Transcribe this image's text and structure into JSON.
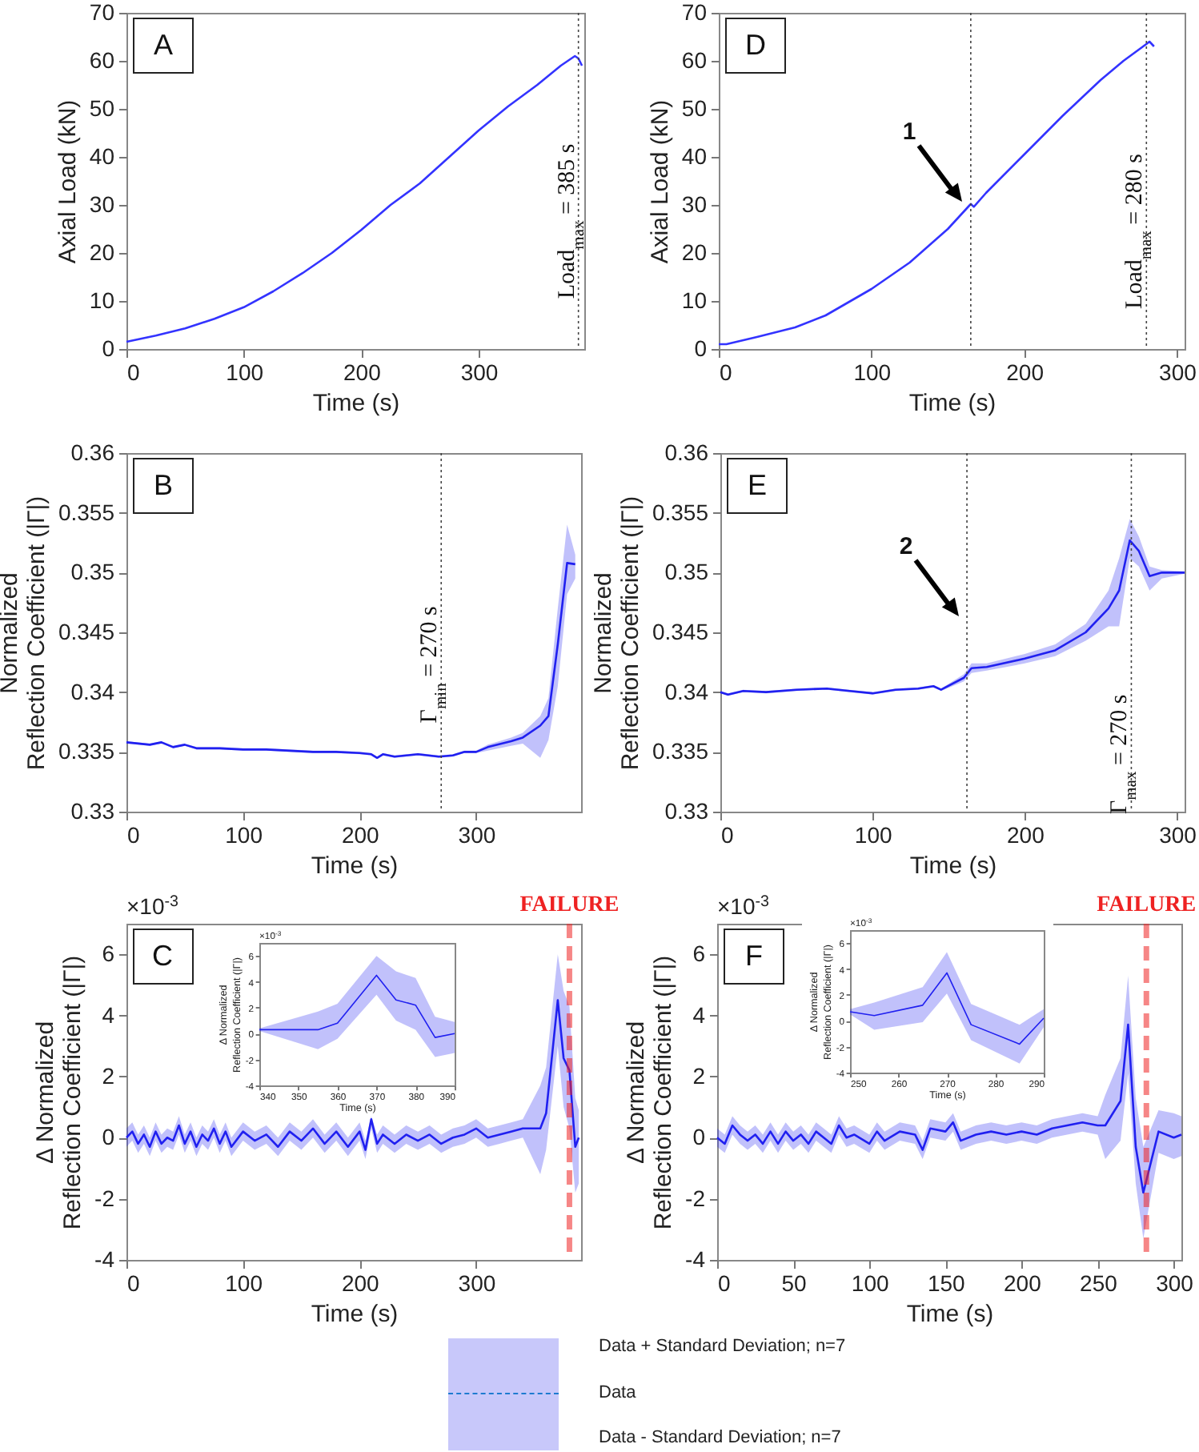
{
  "chart_data": [
    {
      "type": "line",
      "xlabel": "Time (s)",
      "ylabel": "Axial Load (kN)",
      "x": [
        0,
        25,
        50,
        75,
        100,
        125,
        150,
        175,
        200,
        225,
        250,
        275,
        300,
        325,
        350,
        370,
        382,
        385,
        388
      ],
      "series": [
        {
          "color": "#3333ff",
          "values": [
            1.5,
            2.8,
            4.3,
            6.3,
            8.7,
            12,
            15.8,
            20,
            24.8,
            30,
            34.5,
            40,
            45.5,
            50.5,
            55,
            59,
            61,
            60.5,
            59
          ]
        }
      ],
      "xlim": [
        0,
        390
      ],
      "ylim": [
        0,
        70
      ],
      "xticks": [
        0,
        100,
        200,
        300
      ],
      "yticks": [
        0,
        10,
        20,
        30,
        40,
        50,
        60,
        70
      ],
      "ref_lines": [
        {
          "axis": "x",
          "value": 385,
          "label": "Load$_{max}$ = 385 s",
          "line_style": "dotted"
        }
      ],
      "annotations": [
        "A"
      ]
    },
    {
      "type": "line",
      "xlabel": "Time (s)",
      "ylabel": "Axial Load (kN)",
      "x": [
        0,
        5,
        25,
        50,
        70,
        100,
        125,
        150,
        163,
        165,
        167,
        175,
        200,
        225,
        250,
        265,
        280,
        282,
        285
      ],
      "series": [
        {
          "color": "#3333ff",
          "values": [
            1,
            1,
            2.5,
            4.5,
            7,
            12.5,
            18,
            25,
            29.5,
            30.2,
            29.6,
            32.5,
            40.5,
            48.5,
            56,
            60,
            63.5,
            64,
            63
          ]
        }
      ],
      "xlim": [
        0,
        305
      ],
      "ylim": [
        0,
        70
      ],
      "xticks": [
        0,
        100,
        200,
        300
      ],
      "yticks": [
        0,
        10,
        20,
        30,
        40,
        50,
        60,
        70
      ],
      "ref_lines": [
        {
          "axis": "x",
          "value": 165,
          "line_style": "dotted"
        },
        {
          "axis": "x",
          "value": 280,
          "label": "Load$_{max}$ = 280 s",
          "line_style": "dotted"
        }
      ],
      "annotations": [
        "D",
        "1"
      ]
    },
    {
      "type": "line",
      "xlabel": "Time (s)",
      "ylabel": "Normalized\nReflection Coefficient (|Γ|)",
      "x": [
        0,
        10,
        20,
        30,
        40,
        50,
        60,
        80,
        100,
        120,
        140,
        160,
        180,
        200,
        210,
        215,
        220,
        230,
        250,
        268,
        280,
        290,
        300,
        310,
        330,
        340,
        355,
        362,
        370,
        378,
        385
      ],
      "series": [
        {
          "color": "#2020f0",
          "values": [
            0.3358,
            0.3357,
            0.3356,
            0.3358,
            0.3354,
            0.3356,
            0.3353,
            0.3353,
            0.3352,
            0.3352,
            0.3351,
            0.335,
            0.335,
            0.3349,
            0.3348,
            0.3345,
            0.3348,
            0.3346,
            0.3348,
            0.3346,
            0.3347,
            0.335,
            0.335,
            0.3354,
            0.3359,
            0.3362,
            0.3372,
            0.338,
            0.344,
            0.3508,
            0.3507
          ],
          "lower": [
            0.3357,
            0.3356,
            0.3355,
            0.3357,
            0.3353,
            0.3355,
            0.3352,
            0.3352,
            0.3351,
            0.3351,
            0.335,
            0.3349,
            0.3349,
            0.3348,
            0.3347,
            0.3344,
            0.3347,
            0.3345,
            0.3347,
            0.3345,
            0.3346,
            0.3349,
            0.3349,
            0.3351,
            0.3355,
            0.3357,
            0.3345,
            0.336,
            0.3405,
            0.3482,
            0.3495
          ],
          "upper": [
            0.3359,
            0.3358,
            0.3357,
            0.3359,
            0.3355,
            0.3357,
            0.3354,
            0.3354,
            0.3353,
            0.3353,
            0.3352,
            0.3351,
            0.3351,
            0.335,
            0.3349,
            0.3346,
            0.3349,
            0.3347,
            0.3349,
            0.3347,
            0.3348,
            0.3351,
            0.3351,
            0.3356,
            0.3362,
            0.3366,
            0.338,
            0.3395,
            0.347,
            0.354,
            0.3515
          ]
        }
      ],
      "xlim": [
        0,
        390
      ],
      "ylim": [
        0.33,
        0.36
      ],
      "xticks": [
        0,
        100,
        200,
        300
      ],
      "yticks": [
        0.33,
        0.335,
        0.34,
        0.345,
        0.35,
        0.355,
        0.36
      ],
      "ref_lines": [
        {
          "axis": "x",
          "value": 270,
          "label": "Γ$_{min}$ = 270 s",
          "line_style": "dotted"
        }
      ],
      "annotations": [
        "B"
      ]
    },
    {
      "type": "line",
      "xlabel": "Time (s)",
      "ylabel": "Normalized\nReflection Coefficient (|Γ|)",
      "x": [
        0,
        5,
        15,
        30,
        50,
        70,
        85,
        100,
        115,
        130,
        140,
        145,
        160,
        165,
        175,
        200,
        220,
        240,
        255,
        262,
        269,
        275,
        282,
        290,
        305
      ],
      "series": [
        {
          "color": "#2020f0",
          "values": [
            0.34,
            0.3398,
            0.3401,
            0.34,
            0.3402,
            0.3403,
            0.3401,
            0.3399,
            0.3402,
            0.3403,
            0.3405,
            0.3402,
            0.3412,
            0.342,
            0.3421,
            0.3428,
            0.3435,
            0.345,
            0.347,
            0.3485,
            0.3527,
            0.3518,
            0.3497,
            0.35,
            0.35
          ],
          "lower": [
            0.3399,
            0.3397,
            0.34,
            0.3399,
            0.3401,
            0.3402,
            0.34,
            0.3398,
            0.3401,
            0.3402,
            0.3404,
            0.3401,
            0.3409,
            0.3416,
            0.3418,
            0.3424,
            0.343,
            0.3443,
            0.3455,
            0.3455,
            0.3512,
            0.3505,
            0.3485,
            0.3495,
            0.3499
          ],
          "upper": [
            0.3401,
            0.3399,
            0.3402,
            0.3401,
            0.3403,
            0.3404,
            0.3402,
            0.34,
            0.3403,
            0.3404,
            0.3406,
            0.3403,
            0.3415,
            0.3424,
            0.3424,
            0.3432,
            0.344,
            0.3457,
            0.3485,
            0.3512,
            0.3545,
            0.353,
            0.3505,
            0.3502,
            0.3501
          ]
        }
      ],
      "xlim": [
        0,
        305
      ],
      "ylim": [
        0.33,
        0.36
      ],
      "xticks": [
        0,
        100,
        200,
        300
      ],
      "yticks": [
        0.33,
        0.335,
        0.34,
        0.345,
        0.35,
        0.355,
        0.36
      ],
      "ref_lines": [
        {
          "axis": "x",
          "value": 162,
          "line_style": "dotted"
        },
        {
          "axis": "x",
          "value": 270,
          "label": "Γ$_{max}$ = 270 s",
          "line_style": "dotted"
        }
      ],
      "annotations": [
        "E",
        "2"
      ]
    },
    {
      "type": "line",
      "xlabel": "Time (s)",
      "ylabel": "Δ Normalized\nReflection Coefficient (|Γ|)",
      "x": [
        0,
        5,
        10,
        15,
        20,
        25,
        30,
        35,
        40,
        45,
        50,
        55,
        60,
        65,
        70,
        75,
        80,
        85,
        90,
        100,
        110,
        120,
        130,
        140,
        150,
        160,
        170,
        180,
        190,
        200,
        205,
        210,
        215,
        220,
        230,
        240,
        250,
        260,
        270,
        280,
        290,
        300,
        310,
        320,
        330,
        340,
        355,
        360,
        370,
        375,
        380,
        385,
        388
      ],
      "series": [
        {
          "color": "#2020f0",
          "values": [
            0,
            0.2,
            -0.2,
            0.1,
            -0.3,
            0.2,
            -0.2,
            0,
            -0.1,
            0.4,
            -0.2,
            0.2,
            -0.3,
            0.1,
            -0.1,
            0.3,
            -0.2,
            0.2,
            -0.3,
            0.2,
            -0.1,
            0.1,
            -0.3,
            0.2,
            -0.1,
            0.3,
            -0.2,
            0.2,
            -0.3,
            0.2,
            -0.4,
            0.6,
            -0.2,
            0.1,
            -0.2,
            0.1,
            -0.1,
            0.1,
            -0.2,
            0,
            0.1,
            0.3,
            0,
            0.1,
            0.2,
            0.3,
            0.3,
            0.8,
            4.5,
            2.6,
            2.2,
            -0.3,
            0
          ],
          "lower": [
            -0.3,
            -0.1,
            -0.5,
            -0.2,
            -0.6,
            -0.1,
            -0.5,
            -0.3,
            -0.4,
            0.1,
            -0.5,
            -0.1,
            -0.6,
            -0.2,
            -0.4,
            0,
            -0.5,
            -0.1,
            -0.6,
            -0.1,
            -0.4,
            -0.2,
            -0.6,
            -0.1,
            -0.4,
            0,
            -0.5,
            -0.1,
            -0.6,
            -0.1,
            -0.7,
            0.3,
            -0.5,
            -0.2,
            -0.5,
            -0.2,
            -0.4,
            -0.2,
            -0.5,
            -0.3,
            -0.2,
            0,
            -0.3,
            -0.2,
            -0.1,
            0,
            -1.2,
            -0.4,
            3,
            1,
            0.3,
            -1.8,
            -1.5
          ],
          "upper": [
            0.3,
            0.5,
            0.1,
            0.4,
            0,
            0.5,
            0.1,
            0.3,
            0.2,
            0.7,
            0.1,
            0.5,
            0,
            0.4,
            0.2,
            0.6,
            0.1,
            0.5,
            0,
            0.5,
            0.2,
            0.4,
            0,
            0.5,
            0.2,
            0.6,
            0.1,
            0.5,
            0,
            0.5,
            -0.1,
            0.7,
            0.1,
            0.4,
            0.1,
            0.4,
            0.2,
            0.4,
            0.1,
            0.3,
            0.4,
            0.6,
            0.3,
            0.4,
            0.5,
            0.6,
            1.7,
            2.3,
            6,
            4.8,
            4.3,
            1.3,
            0.9
          ]
        }
      ],
      "xlim": [
        0,
        390
      ],
      "ylim": [
        -4,
        7
      ],
      "xticks": [
        0,
        100,
        200,
        300
      ],
      "yticks": [
        -4,
        -2,
        0,
        2,
        4,
        6
      ],
      "ref_lines": [
        {
          "axis": "x",
          "value": 380,
          "label": "FAILURE",
          "color": "#ee2222",
          "line_style": "dashed"
        }
      ],
      "annotations": [
        "C",
        "×10$^{-3}$"
      ]
    },
    {
      "type": "line",
      "xlabel": "Time (s)",
      "ylabel": "Δ Normalized\nReflection Coefficient (|Γ|)",
      "x": [
        340,
        355,
        360,
        370,
        375,
        380,
        385,
        390
      ],
      "series": [
        {
          "color": "#2020f0",
          "values": [
            0.3,
            0.3,
            0.8,
            4.5,
            2.6,
            2.2,
            -0.3,
            0
          ],
          "lower": [
            0.2,
            -1.2,
            -0.4,
            3,
            1,
            0.3,
            -1.8,
            -1.5
          ],
          "upper": [
            0.4,
            1.7,
            2.3,
            6,
            4.8,
            4.3,
            1.3,
            0.9
          ]
        }
      ],
      "xlim": [
        340,
        390
      ],
      "ylim": [
        -4,
        7
      ],
      "xticks": [
        340,
        350,
        360,
        370,
        380,
        390
      ],
      "yticks": [
        -4,
        -2,
        0,
        2,
        4,
        6
      ],
      "annotations": [
        "×10$^{-3}$"
      ]
    },
    {
      "type": "line",
      "xlabel": "Time (s)",
      "ylabel": "Δ Normalized\nReflection Coefficient (|Γ|)",
      "x": [
        0,
        5,
        10,
        15,
        20,
        25,
        30,
        35,
        40,
        45,
        50,
        55,
        60,
        65,
        70,
        75,
        80,
        85,
        90,
        100,
        105,
        110,
        120,
        130,
        135,
        140,
        150,
        155,
        160,
        170,
        180,
        190,
        200,
        210,
        220,
        230,
        240,
        250,
        255,
        265,
        270,
        275,
        280,
        290,
        300,
        305
      ],
      "series": [
        {
          "color": "#2020f0",
          "values": [
            0,
            -0.2,
            0.4,
            0.1,
            -0.1,
            0.1,
            -0.2,
            0.2,
            -0.2,
            0.2,
            -0.1,
            0.1,
            -0.2,
            0.2,
            0,
            -0.2,
            0.4,
            0,
            0.1,
            -0.2,
            0.2,
            -0.1,
            0.2,
            0.1,
            -0.4,
            0.3,
            0.2,
            0.5,
            -0.1,
            0.1,
            0.2,
            0.1,
            0.2,
            0.1,
            0.3,
            0.4,
            0.5,
            0.4,
            0.4,
            1.2,
            3.7,
            -0.3,
            -1.8,
            0.2,
            0,
            0.1
          ],
          "lower": [
            -0.3,
            -0.5,
            0.1,
            -0.2,
            -0.4,
            -0.2,
            -0.5,
            -0.1,
            -0.5,
            -0.1,
            -0.4,
            -0.2,
            -0.5,
            -0.1,
            -0.3,
            -0.5,
            0.1,
            -0.3,
            -0.2,
            -0.5,
            -0.1,
            -0.4,
            -0.1,
            -0.2,
            -0.7,
            0,
            -0.1,
            0.2,
            -0.4,
            -0.2,
            -0.1,
            -0.2,
            -0.1,
            -0.2,
            0,
            0.1,
            0.2,
            0.1,
            -0.7,
            -0.1,
            2.1,
            -1.5,
            -3.3,
            -0.5,
            -0.7,
            -0.6
          ],
          "upper": [
            0.3,
            0.1,
            0.7,
            0.4,
            0.2,
            0.4,
            0.1,
            0.5,
            0.1,
            0.5,
            0.2,
            0.4,
            0.1,
            0.5,
            0.3,
            0.1,
            0.7,
            0.3,
            0.4,
            0.1,
            0.5,
            0.2,
            0.5,
            0.4,
            -0.1,
            0.6,
            0.5,
            0.8,
            0.2,
            0.4,
            0.5,
            0.4,
            0.5,
            0.4,
            0.6,
            0.7,
            0.8,
            0.7,
            1.4,
            2.6,
            5.3,
            1.3,
            -0.3,
            0.9,
            0.8,
            0.7
          ]
        }
      ],
      "xlim": [
        0,
        305
      ],
      "ylim": [
        -4,
        7
      ],
      "xticks": [
        0,
        50,
        100,
        150,
        200,
        250,
        300
      ],
      "yticks": [
        -4,
        -2,
        0,
        2,
        4,
        6
      ],
      "ref_lines": [
        {
          "axis": "x",
          "value": 282,
          "label": "FAILURE",
          "color": "#ee2222",
          "line_style": "dashed"
        }
      ],
      "annotations": [
        "F",
        "×10$^{-3}$"
      ]
    },
    {
      "type": "line",
      "xlabel": "Time (s)",
      "ylabel": "Δ Normalized\nReflection Coefficient (|Γ|)",
      "x": [
        250,
        255,
        265,
        270,
        275,
        285,
        290
      ],
      "series": [
        {
          "color": "#2020f0",
          "values": [
            0.7,
            0.4,
            1.2,
            3.7,
            -0.3,
            -1.8,
            0.2
          ],
          "lower": [
            0.5,
            -0.7,
            -0.1,
            2.1,
            -1.5,
            -3.3,
            -0.5
          ],
          "upper": [
            0.9,
            1.4,
            2.6,
            5.3,
            1.3,
            -0.3,
            0.9
          ]
        }
      ],
      "xlim": [
        250,
        290
      ],
      "ylim": [
        -4,
        7
      ],
      "xticks": [
        250,
        260,
        270,
        280,
        290
      ],
      "yticks": [
        -4,
        -2,
        0,
        2,
        4,
        6
      ],
      "annotations": [
        "×10$^{-3}$"
      ]
    },
    {
      "type": "other",
      "annotations": [
        "Data + Standard Deviation; n=7",
        "Data",
        "Data - Standard Deviation; n=7"
      ]
    }
  ]
}
